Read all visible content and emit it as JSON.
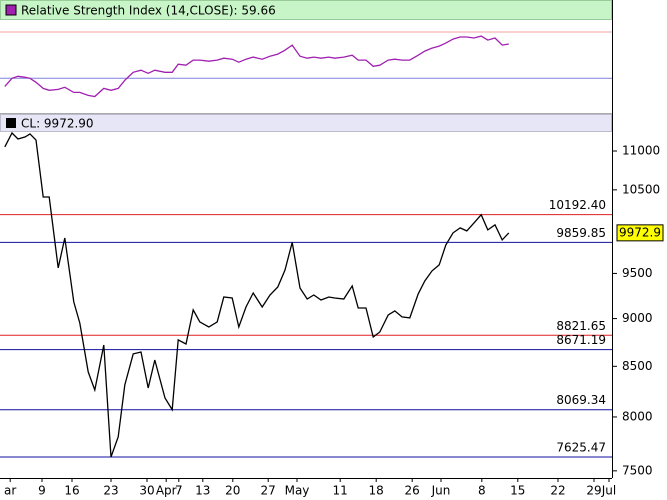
{
  "chart_data": [
    {
      "type": "line",
      "title": "Relative Strength Index (14,CLOSE): 59.66",
      "xlim": [
        0,
        102
      ],
      "ylim": [
        0,
        80.4
      ],
      "x": [
        0.8,
        2,
        3,
        4.2,
        5,
        6,
        7.2,
        8.2,
        9.7,
        10.8,
        12.3,
        13.3,
        14.7,
        15.8,
        17.3,
        18.5,
        19.7,
        20.8,
        22.2,
        23.5,
        24.7,
        25.8,
        27.5,
        28.7,
        29.7,
        31,
        32.2,
        33.3,
        34.8,
        36.2,
        37.3,
        38.7,
        39.8,
        41,
        42.2,
        43.7,
        45,
        46.3,
        47.5,
        48.7,
        50,
        51.2,
        52.3,
        53.5,
        54.8,
        55.8,
        57.3,
        58.7,
        59.7,
        61,
        62.2,
        63.3,
        64.7,
        65.8,
        67,
        68.3,
        69.7,
        70.8,
        72,
        73.2,
        74.3,
        75.5,
        76.7,
        77.8,
        79,
        80.2,
        81.3,
        82.5,
        83.7,
        84.8
      ],
      "series": [
        {
          "name": "Relative Strength Index",
          "color": "#a020b0",
          "values": [
            23,
            30,
            31.7,
            30.9,
            30,
            26.5,
            21.3,
            19.6,
            20.4,
            22.2,
            17.8,
            17.8,
            15.2,
            14.3,
            21.3,
            19.6,
            21.3,
            28.3,
            35.2,
            37,
            34.3,
            37,
            35.2,
            35.2,
            42.2,
            41.3,
            45.7,
            45.7,
            44.8,
            45.7,
            47.4,
            46.5,
            43.9,
            46.5,
            48.3,
            46.5,
            49.1,
            50.9,
            54.3,
            58.7,
            49.1,
            47.4,
            48.3,
            47.4,
            48.3,
            47.4,
            48.3,
            50,
            45.7,
            45.7,
            40.4,
            41.3,
            45.7,
            46.5,
            45.7,
            45.7,
            50,
            53.5,
            56.1,
            57.8,
            60.4,
            63.9,
            65.7,
            65.7,
            64.8,
            66.5,
            63,
            64.8,
            58.7,
            59.66
          ]
        }
      ],
      "levels": [
        {
          "value": 70,
          "color": "#f0a0a0"
        },
        {
          "value": 30,
          "color": "#8080e0"
        }
      ]
    },
    {
      "type": "line",
      "title": "CL: 9972.90",
      "xlim": [
        0,
        102
      ],
      "ylim": [
        7436,
        11253
      ],
      "log_y": true,
      "x": [
        0.8,
        2,
        3,
        4.2,
        5,
        6,
        7.2,
        8.2,
        9.7,
        10.8,
        12.3,
        13.3,
        14.7,
        15.8,
        17.3,
        18.5,
        19.7,
        20.8,
        22.2,
        23.5,
        24.7,
        25.8,
        27.5,
        28.7,
        29.7,
        31,
        32.2,
        33.3,
        34.8,
        36.2,
        37.3,
        38.7,
        39.8,
        41,
        42.2,
        43.7,
        45,
        46.3,
        47.5,
        48.7,
        50,
        51.2,
        52.3,
        53.5,
        54.8,
        55.8,
        57.3,
        58.7,
        59.7,
        61,
        62.2,
        63.3,
        64.7,
        65.8,
        67,
        68.3,
        69.7,
        70.8,
        72,
        73.2,
        74.3,
        75.5,
        76.7,
        77.8,
        79,
        80.2,
        81.3,
        82.5,
        83.7,
        84.8
      ],
      "series": [
        {
          "name": "CL",
          "color": "#000000",
          "values": [
            11054,
            11240,
            11159,
            11187,
            11227,
            11146,
            10411,
            10411,
            9563,
            9912,
            9180,
            8953,
            8443,
            8262,
            8720,
            7625.47,
            7811,
            8312,
            8627,
            8647,
            8282,
            8565,
            8184,
            8069.34,
            8773,
            8730,
            9094,
            8964,
            8910,
            8964,
            9236,
            9225,
            8910,
            9126,
            9280,
            9126,
            9258,
            9347,
            9539,
            9859.85,
            9336,
            9214,
            9258,
            9203,
            9236,
            9225,
            9214,
            9359,
            9115,
            9115,
            8804,
            8857,
            9039,
            9083,
            9018,
            9007,
            9270,
            9414,
            9529,
            9597,
            9829,
            9972,
            10032,
            9996,
            10092,
            10192.4,
            10008,
            10068,
            9889,
            9972.9
          ]
        }
      ],
      "yticks": [
        7500,
        8000,
        8500,
        9000,
        9500,
        10500,
        11000
      ],
      "xticks": [
        {
          "value": 1.7,
          "label": "ar"
        },
        {
          "value": 7,
          "label": "9"
        },
        {
          "value": 12,
          "label": "16"
        },
        {
          "value": 18.5,
          "label": "23"
        },
        {
          "value": 24.5,
          "label": "30"
        },
        {
          "value": 27.7,
          "label": "Apr"
        },
        {
          "value": 29.8,
          "label": "7"
        },
        {
          "value": 33.8,
          "label": "13"
        },
        {
          "value": 38.8,
          "label": "20"
        },
        {
          "value": 44.7,
          "label": "27"
        },
        {
          "value": 49.5,
          "label": "May"
        },
        {
          "value": 56.7,
          "label": "11"
        },
        {
          "value": 62.7,
          "label": "18"
        },
        {
          "value": 68.7,
          "label": "26"
        },
        {
          "value": 73.5,
          "label": "Jun"
        },
        {
          "value": 80.3,
          "label": "8"
        },
        {
          "value": 86.3,
          "label": "15"
        },
        {
          "value": 93,
          "label": "22"
        },
        {
          "value": 99,
          "label": "29"
        },
        {
          "value": 101.5,
          "label": "Jul"
        }
      ],
      "levels": [
        {
          "value": 10192.4,
          "label": "10192.40",
          "color": "#e02020"
        },
        {
          "value": 9859.85,
          "label": "9859.85",
          "color": "#1010a0"
        },
        {
          "value": 8821.65,
          "label": "8821.65",
          "color": "#e02020"
        },
        {
          "value": 8671.19,
          "label": "8671.19",
          "color": "#1010a0"
        },
        {
          "value": 8069.34,
          "label": "8069.34",
          "color": "#1010a0"
        },
        {
          "value": 7625.47,
          "label": "7625.47",
          "color": "#1010a0"
        }
      ],
      "last_price": 9972.9
    }
  ]
}
